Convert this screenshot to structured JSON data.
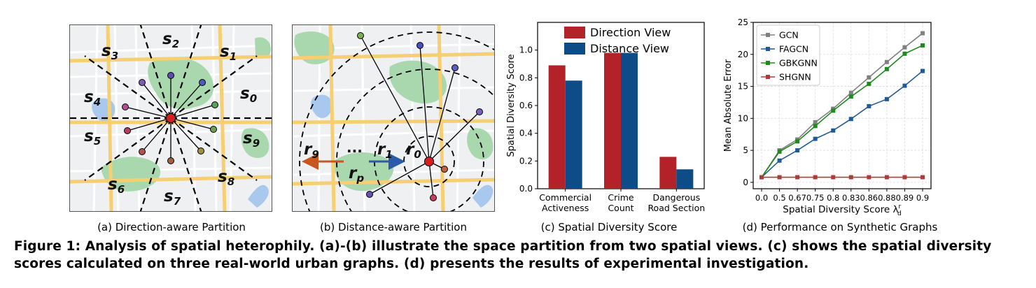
{
  "panel_a": {
    "sector_labels": [
      {
        "base": "s",
        "sub": "0"
      },
      {
        "base": "s",
        "sub": "1"
      },
      {
        "base": "s",
        "sub": "2"
      },
      {
        "base": "s",
        "sub": "3"
      },
      {
        "base": "s",
        "sub": "4"
      },
      {
        "base": "s",
        "sub": "5"
      },
      {
        "base": "s",
        "sub": "6"
      },
      {
        "base": "s",
        "sub": "7"
      },
      {
        "base": "s",
        "sub": "8"
      },
      {
        "base": "s",
        "sub": "9"
      }
    ],
    "caption": "(a) Direction-aware Partition"
  },
  "panel_b": {
    "ring_labels": [
      {
        "base": "r",
        "sub": "0"
      },
      {
        "base": "r",
        "sub": "1"
      },
      {
        "base": "r",
        "sub": "p"
      },
      {
        "base": "r",
        "sub": "9"
      }
    ],
    "ellipsis": "...",
    "caption": "(b) Distance-aware Partition"
  },
  "colors": {
    "direction": "#b22228",
    "distance": "#0e4c87",
    "gcn": "#808080",
    "fagcn": "#1f5a96",
    "gbkgnn": "#1e8b1e",
    "shgnn": "#b03a3a"
  },
  "chart_data": [
    {
      "type": "bar",
      "title": "(c) Spatial Diversity Score",
      "ylabel": "Spatial Diversity Score",
      "xlabel": "",
      "categories": [
        [
          "Commercial",
          "Activeness"
        ],
        [
          "Crime",
          "Count"
        ],
        [
          "Dangerous",
          "Road Section"
        ]
      ],
      "series": [
        {
          "name": "Direction View",
          "values": [
            0.89,
            0.98,
            0.23
          ]
        },
        {
          "name": "Distance View",
          "values": [
            0.78,
            0.98,
            0.14
          ]
        }
      ],
      "ylim": [
        0,
        1.2
      ],
      "yticks": [
        "0.0",
        "0.2",
        "0.4",
        "0.6",
        "0.8",
        "1.0"
      ],
      "legend": "top"
    },
    {
      "type": "line",
      "title": "(d) Performance on Synthetic Graphs",
      "ylabel": "Mean Absolute Error",
      "xlabel": "Spatial Diversity Score λ",
      "xlabel_sup": "r",
      "xlabel_sub": "d",
      "x": [
        "0.0",
        "0.5",
        "0.67",
        "0.75",
        "0.8",
        "0.83",
        "0.86",
        "0.88",
        "0.89",
        "0.9"
      ],
      "series": [
        {
          "name": "GCN",
          "values": [
            0.8,
            5.0,
            6.7,
            9.4,
            11.5,
            14.0,
            16.4,
            18.8,
            21.1,
            23.3
          ]
        },
        {
          "name": "FAGCN",
          "values": [
            0.8,
            3.4,
            5.0,
            6.8,
            8.1,
            9.9,
            11.9,
            13.0,
            15.1,
            17.4
          ]
        },
        {
          "name": "GBKGNN",
          "values": [
            0.8,
            4.8,
            6.4,
            8.8,
            11.2,
            13.4,
            15.4,
            17.7,
            20.1,
            21.4
          ]
        },
        {
          "name": "SHGNN",
          "values": [
            0.8,
            0.8,
            0.8,
            0.8,
            0.8,
            0.8,
            0.8,
            0.8,
            0.8,
            0.8
          ]
        }
      ],
      "ylim": [
        -1,
        25
      ],
      "yticks": [
        "0",
        "5",
        "10",
        "15",
        "20",
        "25"
      ],
      "grid": true,
      "legend": "top-left"
    }
  ],
  "figure_caption": {
    "label": "Figure 1:",
    "text": "Analysis of spatial heterophily. (a)-(b) illustrate the space partition from two spatial views. (c) shows the spatial diversity scores calculated on three real-world urban graphs. (d) presents the results of experimental investigation."
  }
}
